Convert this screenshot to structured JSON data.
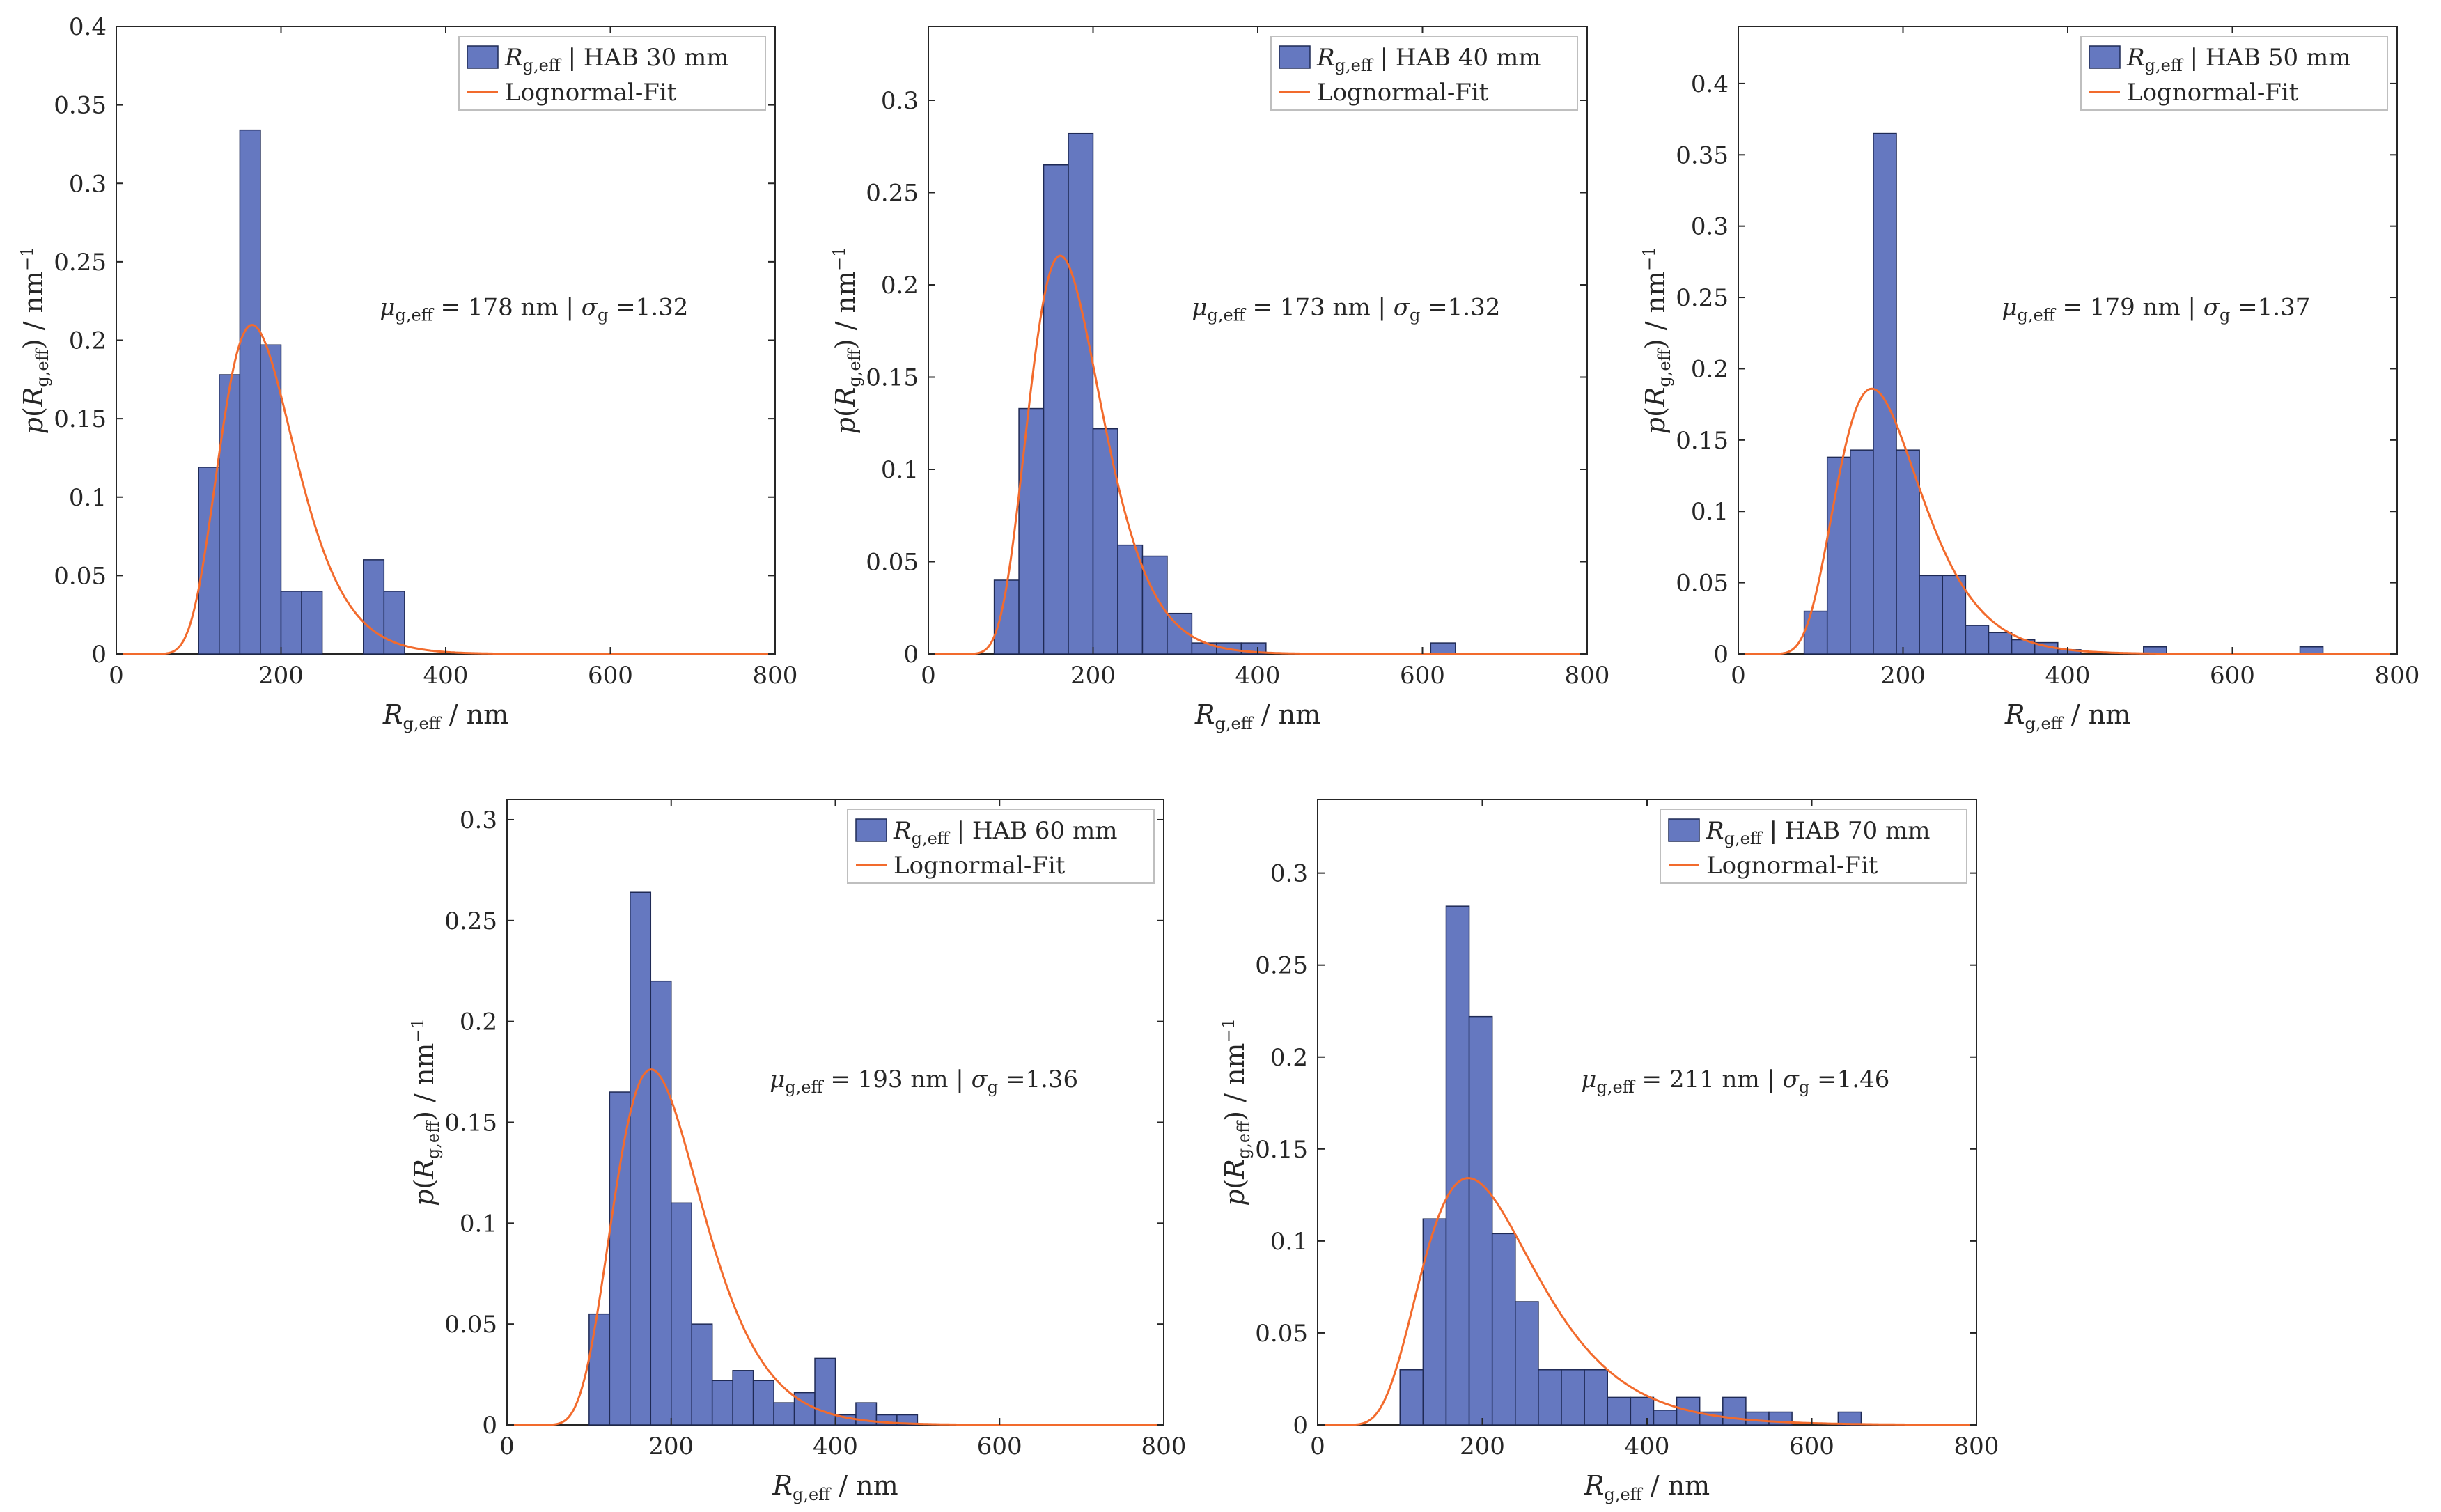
{
  "colors": {
    "bar_fill": "#6578C0",
    "bar_edge": "#1f2a55",
    "fit_line": "#F26B2D",
    "axis": "#262626",
    "legend_border": "#bfbfbf"
  },
  "labels": {
    "x_main": "R",
    "x_sub": "g,eff",
    "x_unit": " / nm",
    "y_p": "p(",
    "y_R": "R",
    "y_sub": "g,eff",
    "y_close": ")",
    "y_unit": " / nm",
    "y_exp": "−1",
    "legend_sym": "R",
    "legend_sub": "g,eff",
    "fit_label": "Lognormal-Fit",
    "mu_sym": "μ",
    "mu_sub": "g,eff",
    "sigma_sym": "σ",
    "sigma_sub": "g",
    "sep": " | "
  },
  "chart_data": [
    {
      "type": "bar",
      "legend_text": " | HAB 30 mm",
      "mu_text": " = 178 nm",
      "sigma_text": " =1.32",
      "bin_edges": [
        100,
        125,
        150,
        175,
        200,
        225,
        250,
        275,
        300,
        325,
        350
      ],
      "values": [
        0.119,
        0.178,
        0.334,
        0.197,
        0.04,
        0.04,
        0,
        0,
        0.06,
        0.04
      ],
      "fit": {
        "mu": 178,
        "sigma_g": 1.32
      },
      "xlim": [
        0,
        800
      ],
      "ylim": [
        0,
        0.4
      ],
      "xticks": [
        0,
        200,
        400,
        600,
        800
      ],
      "yticks": [
        0,
        0.05,
        0.1,
        0.15,
        0.2,
        0.25,
        0.3,
        0.35,
        0.4
      ],
      "ytick_labels": [
        "0",
        "0.05",
        "0.1",
        "0.15",
        "0.2",
        "0.25",
        "0.3",
        "0.35",
        "0.4"
      ],
      "legend_location": "top-right"
    },
    {
      "type": "bar",
      "legend_text": " | HAB 40 mm",
      "mu_text": " = 173 nm",
      "sigma_text": " =1.32",
      "bin_edges": [
        80,
        110,
        140,
        170,
        200,
        230,
        260,
        290,
        320,
        350,
        380,
        410
      ],
      "values": [
        0.04,
        0.133,
        0.265,
        0.282,
        0.122,
        0.059,
        0.053,
        0.022,
        0.006,
        0.006,
        0.006
      ],
      "extra_bars": [
        {
          "x0": 610,
          "x1": 640,
          "value": 0.006
        }
      ],
      "fit": {
        "mu": 173,
        "sigma_g": 1.32
      },
      "xlim": [
        0,
        800
      ],
      "ylim": [
        0,
        0.34
      ],
      "xticks": [
        0,
        200,
        400,
        600,
        800
      ],
      "yticks": [
        0,
        0.05,
        0.1,
        0.15,
        0.2,
        0.25,
        0.3
      ],
      "ytick_labels": [
        "0",
        "0.05",
        "0.1",
        "0.15",
        "0.2",
        "0.25",
        "0.3"
      ],
      "legend_location": "top-right"
    },
    {
      "type": "bar",
      "legend_text": " | HAB 50 mm",
      "mu_text": " = 179 nm",
      "sigma_text": " =1.37",
      "bin_edges": [
        80,
        108,
        136,
        164,
        192,
        220,
        248,
        276,
        304,
        332,
        360,
        388,
        416
      ],
      "values": [
        0.03,
        0.138,
        0.143,
        0.365,
        0.143,
        0.055,
        0.055,
        0.02,
        0.015,
        0.01,
        0.008,
        0.003
      ],
      "extra_bars": [
        {
          "x0": 492,
          "x1": 520,
          "value": 0.005
        },
        {
          "x0": 682,
          "x1": 710,
          "value": 0.005
        }
      ],
      "fit": {
        "mu": 179,
        "sigma_g": 1.37
      },
      "xlim": [
        0,
        800
      ],
      "ylim": [
        0,
        0.44
      ],
      "xticks": [
        0,
        200,
        400,
        600,
        800
      ],
      "yticks": [
        0,
        0.05,
        0.1,
        0.15,
        0.2,
        0.25,
        0.3,
        0.35,
        0.4
      ],
      "ytick_labels": [
        "0",
        "0.05",
        "0.1",
        "0.15",
        "0.2",
        "0.25",
        "0.3",
        "0.35",
        "0.4"
      ],
      "legend_location": "top-right"
    },
    {
      "type": "bar",
      "legend_text": " | HAB 60 mm",
      "mu_text": " = 193 nm",
      "sigma_text": " =1.36",
      "bin_edges": [
        100,
        125,
        150,
        175,
        200,
        225,
        250,
        275,
        300,
        325,
        350,
        375,
        400,
        425,
        450,
        475,
        500
      ],
      "values": [
        0.055,
        0.165,
        0.264,
        0.22,
        0.11,
        0.05,
        0.022,
        0.027,
        0.022,
        0.011,
        0.016,
        0.033,
        0.005,
        0.011,
        0.005,
        0.005
      ],
      "fit": {
        "mu": 193,
        "sigma_g": 1.36
      },
      "xlim": [
        0,
        800
      ],
      "ylim": [
        0,
        0.31
      ],
      "xticks": [
        0,
        200,
        400,
        600,
        800
      ],
      "yticks": [
        0,
        0.05,
        0.1,
        0.15,
        0.2,
        0.25,
        0.3
      ],
      "ytick_labels": [
        "0",
        "0.05",
        "0.1",
        "0.15",
        "0.2",
        "0.25",
        "0.3"
      ],
      "legend_location": "top-right"
    },
    {
      "type": "bar",
      "legend_text": " | HAB 70 mm",
      "mu_text": " = 211 nm",
      "sigma_text": " =1.46",
      "bin_edges": [
        100,
        128,
        156,
        184,
        212,
        240,
        268,
        296,
        324,
        352,
        380,
        408,
        436,
        464,
        492,
        520,
        548,
        576
      ],
      "values": [
        0.03,
        0.112,
        0.282,
        0.222,
        0.104,
        0.067,
        0.03,
        0.03,
        0.03,
        0.015,
        0.015,
        0.008,
        0.015,
        0.007,
        0.015,
        0.007,
        0.007
      ],
      "extra_bars": [
        {
          "x0": 632,
          "x1": 660,
          "value": 0.007
        }
      ],
      "fit": {
        "mu": 211,
        "sigma_g": 1.46
      },
      "xlim": [
        0,
        800
      ],
      "ylim": [
        0,
        0.34
      ],
      "xticks": [
        0,
        200,
        400,
        600,
        800
      ],
      "yticks": [
        0,
        0.05,
        0.1,
        0.15,
        0.2,
        0.25,
        0.3
      ],
      "ytick_labels": [
        "0",
        "0.05",
        "0.1",
        "0.15",
        "0.2",
        "0.25",
        "0.3"
      ],
      "legend_location": "top-right"
    }
  ]
}
